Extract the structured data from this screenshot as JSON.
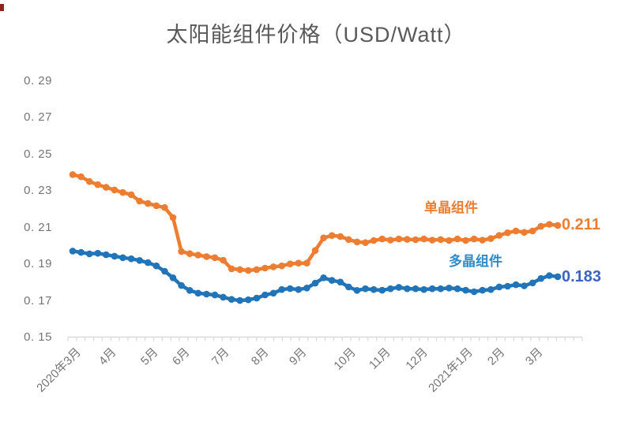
{
  "title": "太阳能组件价格（USD/Watt）",
  "colors": {
    "mono_line": "#ED7D31",
    "poly_line": "#2074B7",
    "mono_label": "#ED7D31",
    "poly_label": "#2E8BC8",
    "mono_value": "#ED7D31",
    "poly_value": "#3C63BE",
    "axis": "#D9D9D9",
    "tick_text": "#757575",
    "title_text": "#595959"
  },
  "annotations": {
    "mono_series": "单晶组件",
    "mono_end_value": "0.211",
    "poly_series": "多晶组件",
    "poly_end_value": "0.183"
  },
  "chart_data": {
    "type": "line",
    "title": "太阳能组件价格（USD/Watt）",
    "x_unit": "week",
    "grid": false,
    "legend": "inline-data-labels",
    "x_axis": {
      "labels": [
        "2020年3月",
        "4月",
        "5月",
        "6月",
        "7月",
        "8月",
        "9月",
        "10月",
        "11月",
        "12月",
        "2021年1月",
        "2月",
        "3月"
      ],
      "label_week_positions": [
        0,
        4.2,
        9.2,
        13.0,
        17.7,
        22.4,
        27.0,
        32.8,
        37.0,
        41.4,
        46.8,
        50.7,
        55.2
      ]
    },
    "y_axis": {
      "tick_labels": [
        "0. 15",
        "0. 17",
        "0. 19",
        "0. 21",
        "0. 23",
        "0. 25",
        "0. 27",
        "0. 29"
      ],
      "tick_values": [
        0.15,
        0.17,
        0.19,
        0.21,
        0.23,
        0.25,
        0.27,
        0.29
      ],
      "range": [
        0.15,
        0.29
      ]
    },
    "series": [
      {
        "name": "单晶组件",
        "color_key": "mono_line",
        "end_label": "0.211",
        "values": [
          0.239,
          0.2378,
          0.2352,
          0.2335,
          0.232,
          0.2306,
          0.2292,
          0.228,
          0.2245,
          0.2232,
          0.222,
          0.221,
          0.2155,
          0.197,
          0.1958,
          0.195,
          0.1942,
          0.1936,
          0.1922,
          0.1875,
          0.1871,
          0.1866,
          0.1871,
          0.1879,
          0.1886,
          0.1891,
          0.1902,
          0.1906,
          0.1906,
          0.1975,
          0.2044,
          0.2057,
          0.2052,
          0.2035,
          0.2022,
          0.2018,
          0.203,
          0.2038,
          0.2032,
          0.2038,
          0.2036,
          0.2034,
          0.2038,
          0.2032,
          0.2035,
          0.203,
          0.2038,
          0.203,
          0.2038,
          0.2032,
          0.204,
          0.2058,
          0.2072,
          0.2082,
          0.2074,
          0.2082,
          0.2108,
          0.2118,
          0.2112
        ]
      },
      {
        "name": "多晶组件",
        "color_key": "poly_line",
        "end_label": "0.183",
        "values": [
          0.1972,
          0.1965,
          0.1957,
          0.196,
          0.1952,
          0.1944,
          0.1936,
          0.193,
          0.1921,
          0.1909,
          0.1891,
          0.1862,
          0.1826,
          0.1784,
          0.1757,
          0.1742,
          0.1737,
          0.1732,
          0.172,
          0.1708,
          0.1702,
          0.1706,
          0.1715,
          0.1732,
          0.1742,
          0.1762,
          0.1767,
          0.1762,
          0.177,
          0.1797,
          0.1826,
          0.1812,
          0.1803,
          0.1776,
          0.1757,
          0.1766,
          0.1762,
          0.1758,
          0.1766,
          0.1774,
          0.1766,
          0.1766,
          0.1762,
          0.1766,
          0.1766,
          0.177,
          0.1766,
          0.1758,
          0.175,
          0.1758,
          0.1762,
          0.1776,
          0.178,
          0.1788,
          0.1782,
          0.1798,
          0.1822,
          0.1838,
          0.1832
        ]
      }
    ]
  }
}
